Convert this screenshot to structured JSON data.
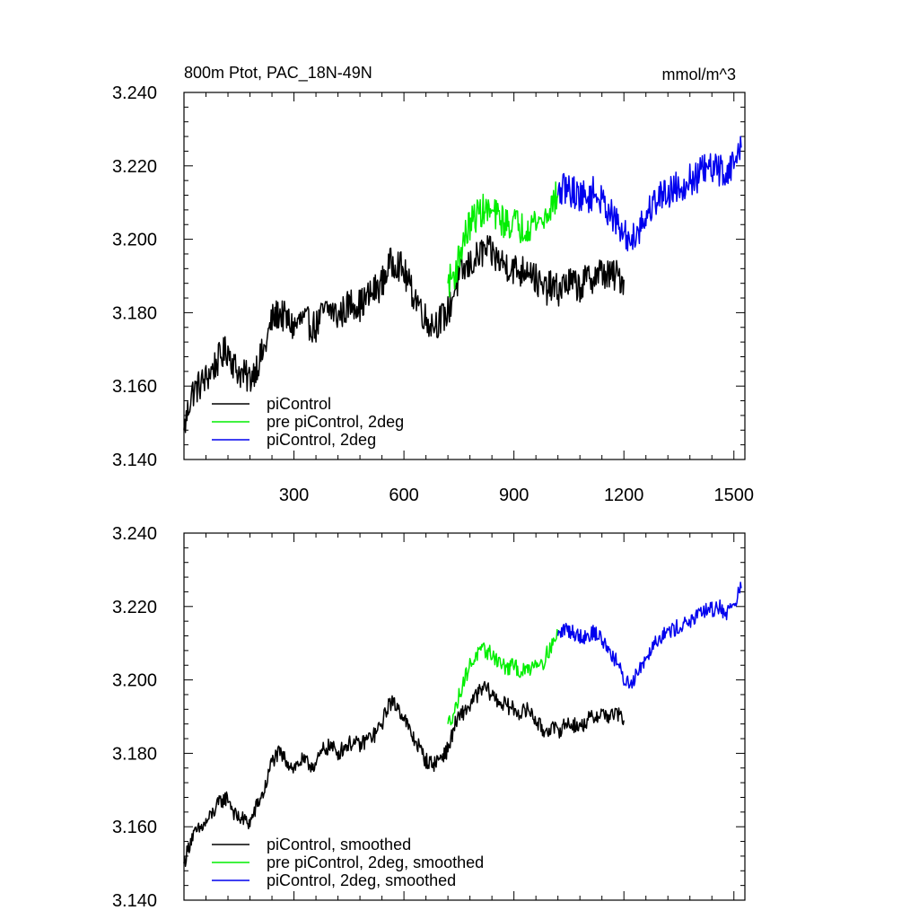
{
  "chart_data": [
    {
      "type": "line",
      "title": "800m Ptot, PAC_18N-49N",
      "units": "mmol/m^3",
      "xlim": [
        0,
        1530
      ],
      "ylim": [
        3.14,
        3.24
      ],
      "xticks": [
        300,
        600,
        900,
        1200,
        1500
      ],
      "xtick_labels": [
        "300",
        "600",
        "900",
        "1200",
        "1500"
      ],
      "yticks": [
        3.14,
        3.16,
        3.18,
        3.2,
        3.22,
        3.24
      ],
      "ytick_labels": [
        "3.140",
        "3.160",
        "3.180",
        "3.200",
        "3.220",
        "3.240"
      ],
      "legend_position": "bottom-left",
      "series": [
        {
          "name": "piControl",
          "color": "#000000",
          "x": [
            0,
            20,
            40,
            60,
            80,
            100,
            120,
            140,
            160,
            180,
            200,
            220,
            240,
            260,
            280,
            300,
            320,
            340,
            360,
            380,
            400,
            420,
            440,
            460,
            480,
            500,
            520,
            540,
            560,
            580,
            600,
            620,
            640,
            660,
            680,
            700,
            720,
            740,
            760,
            780,
            800,
            820,
            840,
            860,
            880,
            900,
            920,
            940,
            960,
            980,
            1000,
            1020,
            1040,
            1060,
            1080,
            1100,
            1120,
            1140,
            1160,
            1180,
            1200
          ],
          "values": [
            3.148,
            3.158,
            3.16,
            3.162,
            3.165,
            3.168,
            3.17,
            3.165,
            3.163,
            3.162,
            3.166,
            3.17,
            3.178,
            3.18,
            3.178,
            3.176,
            3.178,
            3.177,
            3.176,
            3.18,
            3.181,
            3.179,
            3.181,
            3.183,
            3.182,
            3.184,
            3.186,
            3.188,
            3.193,
            3.194,
            3.191,
            3.186,
            3.183,
            3.178,
            3.177,
            3.178,
            3.18,
            3.187,
            3.191,
            3.193,
            3.195,
            3.197,
            3.196,
            3.194,
            3.193,
            3.192,
            3.191,
            3.193,
            3.189,
            3.186,
            3.187,
            3.186,
            3.188,
            3.188,
            3.187,
            3.189,
            3.19,
            3.191,
            3.19,
            3.19,
            3.189
          ]
        },
        {
          "name": "pre piControl, 2deg",
          "color": "#00ee00",
          "x": [
            720,
            740,
            760,
            780,
            800,
            820,
            840,
            860,
            880,
            900,
            920,
            940,
            960,
            980,
            1000,
            1020
          ],
          "values": [
            3.188,
            3.191,
            3.199,
            3.204,
            3.207,
            3.208,
            3.207,
            3.206,
            3.204,
            3.205,
            3.203,
            3.204,
            3.205,
            3.205,
            3.209,
            3.212
          ]
        },
        {
          "name": "piControl, 2deg",
          "color": "#0000ee",
          "x": [
            1020,
            1040,
            1060,
            1080,
            1100,
            1120,
            1140,
            1160,
            1180,
            1200,
            1220,
            1240,
            1260,
            1280,
            1300,
            1320,
            1340,
            1360,
            1380,
            1400,
            1420,
            1440,
            1460,
            1480,
            1500,
            1520
          ],
          "values": [
            3.212,
            3.214,
            3.213,
            3.212,
            3.211,
            3.213,
            3.21,
            3.208,
            3.204,
            3.201,
            3.2,
            3.203,
            3.206,
            3.21,
            3.212,
            3.213,
            3.214,
            3.215,
            3.216,
            3.217,
            3.219,
            3.219,
            3.219,
            3.218,
            3.221,
            3.225
          ]
        }
      ]
    },
    {
      "type": "line",
      "title": "",
      "units": "",
      "xlim": [
        0,
        1530
      ],
      "ylim": [
        3.14,
        3.24
      ],
      "xticks": [
        300,
        600,
        900,
        1200,
        1500
      ],
      "xtick_labels": [],
      "yticks": [
        3.14,
        3.16,
        3.18,
        3.2,
        3.22,
        3.24
      ],
      "ytick_labels": [
        "3.140",
        "3.160",
        "3.180",
        "3.200",
        "3.220",
        "3.240"
      ],
      "legend_position": "bottom-left",
      "series": [
        {
          "name": "piControl, smoothed",
          "color": "#000000",
          "x": [
            0,
            20,
            40,
            60,
            80,
            100,
            120,
            140,
            160,
            180,
            200,
            220,
            240,
            260,
            280,
            300,
            320,
            340,
            360,
            380,
            400,
            420,
            440,
            460,
            480,
            500,
            520,
            540,
            560,
            580,
            600,
            620,
            640,
            660,
            680,
            700,
            720,
            740,
            760,
            780,
            800,
            820,
            840,
            860,
            880,
            900,
            920,
            940,
            960,
            980,
            1000,
            1020,
            1040,
            1060,
            1080,
            1100,
            1120,
            1140,
            1160,
            1180,
            1200
          ],
          "values": [
            3.15,
            3.157,
            3.159,
            3.161,
            3.164,
            3.167,
            3.168,
            3.163,
            3.162,
            3.161,
            3.166,
            3.17,
            3.178,
            3.18,
            3.178,
            3.176,
            3.178,
            3.177,
            3.177,
            3.181,
            3.182,
            3.18,
            3.182,
            3.183,
            3.182,
            3.184,
            3.185,
            3.188,
            3.194,
            3.193,
            3.19,
            3.185,
            3.182,
            3.178,
            3.177,
            3.179,
            3.181,
            3.188,
            3.191,
            3.193,
            3.196,
            3.198,
            3.196,
            3.194,
            3.193,
            3.192,
            3.191,
            3.192,
            3.189,
            3.186,
            3.187,
            3.186,
            3.188,
            3.188,
            3.187,
            3.189,
            3.19,
            3.191,
            3.19,
            3.191,
            3.189
          ]
        },
        {
          "name": "pre piControl, 2deg, smoothed",
          "color": "#00ee00",
          "x": [
            720,
            740,
            760,
            780,
            800,
            820,
            840,
            860,
            880,
            900,
            920,
            940,
            960,
            980,
            1000,
            1020
          ],
          "values": [
            3.188,
            3.192,
            3.199,
            3.204,
            3.207,
            3.208,
            3.207,
            3.205,
            3.203,
            3.204,
            3.202,
            3.203,
            3.205,
            3.205,
            3.209,
            3.212
          ]
        },
        {
          "name": "piControl, 2deg, smoothed",
          "color": "#0000ee",
          "x": [
            1020,
            1040,
            1060,
            1080,
            1100,
            1120,
            1140,
            1160,
            1180,
            1200,
            1220,
            1240,
            1260,
            1280,
            1300,
            1320,
            1340,
            1360,
            1380,
            1400,
            1420,
            1440,
            1460,
            1480,
            1500,
            1520
          ],
          "values": [
            3.212,
            3.214,
            3.213,
            3.212,
            3.212,
            3.213,
            3.211,
            3.208,
            3.205,
            3.2,
            3.199,
            3.203,
            3.206,
            3.21,
            3.212,
            3.213,
            3.214,
            3.215,
            3.216,
            3.217,
            3.219,
            3.219,
            3.22,
            3.218,
            3.221,
            3.225
          ]
        }
      ]
    }
  ]
}
